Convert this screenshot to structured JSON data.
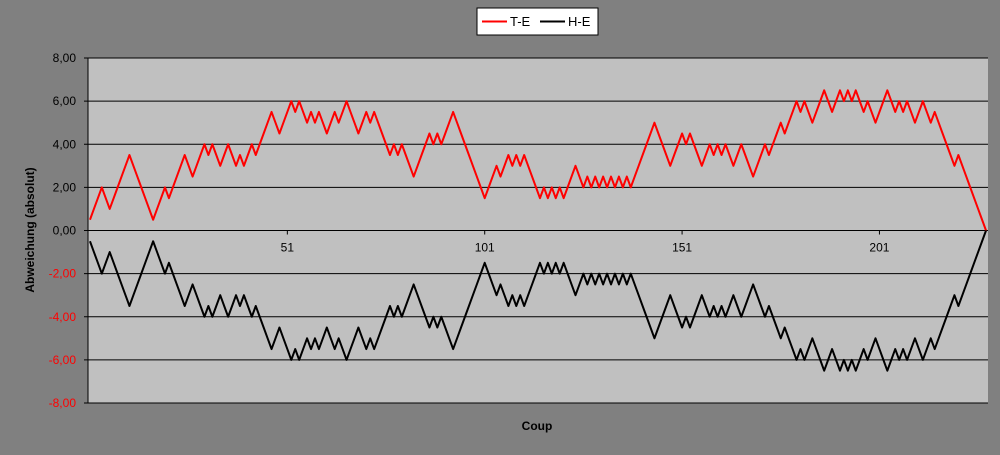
{
  "chart_data": {
    "type": "line",
    "title": "",
    "xlabel": "Coup",
    "ylabel": "Abweichung (absolut)",
    "x_start": 1,
    "x_ticks": [
      "51",
      "101",
      "151",
      "201"
    ],
    "y_ticks": [
      "8,00",
      "6,00",
      "4,00",
      "2,00",
      "0,00",
      "-2,00",
      "-4,00",
      "-6,00",
      "-8,00"
    ],
    "ylim": [
      -8,
      8
    ],
    "grid": true,
    "legend_position": "top-center",
    "colors": {
      "plot_background": "#c0c0c0",
      "page_background": "#808080",
      "grid": "#000000",
      "negative_tick_label": "#ff0000"
    },
    "series": [
      {
        "name": "T-E",
        "color": "#ff0000",
        "values": [
          0.5,
          1,
          1.5,
          2,
          1.5,
          1,
          1.5,
          2,
          2.5,
          3,
          3.5,
          3,
          2.5,
          2,
          1.5,
          1,
          0.5,
          1,
          1.5,
          2,
          1.5,
          2,
          2.5,
          3,
          3.5,
          3,
          2.5,
          3,
          3.5,
          4,
          3.5,
          4,
          3.5,
          3,
          3.5,
          4,
          3.5,
          3,
          3.5,
          3,
          3.5,
          4,
          3.5,
          4,
          4.5,
          5,
          5.5,
          5,
          4.5,
          5,
          5.5,
          6,
          5.5,
          6,
          5.5,
          5,
          5.5,
          5,
          5.5,
          5,
          4.5,
          5,
          5.5,
          5,
          5.5,
          6,
          5.5,
          5,
          4.5,
          5,
          5.5,
          5,
          5.5,
          5,
          4.5,
          4,
          3.5,
          4,
          3.5,
          4,
          3.5,
          3,
          2.5,
          3,
          3.5,
          4,
          4.5,
          4,
          4.5,
          4,
          4.5,
          5,
          5.5,
          5,
          4.5,
          4,
          3.5,
          3,
          2.5,
          2,
          1.5,
          2,
          2.5,
          3,
          2.5,
          3,
          3.5,
          3,
          3.5,
          3,
          3.5,
          3,
          2.5,
          2,
          1.5,
          2,
          1.5,
          2,
          1.5,
          2,
          1.5,
          2,
          2.5,
          3,
          2.5,
          2,
          2.5,
          2,
          2.5,
          2,
          2.5,
          2,
          2.5,
          2,
          2.5,
          2,
          2.5,
          2,
          2.5,
          3,
          3.5,
          4,
          4.5,
          5,
          4.5,
          4,
          3.5,
          3,
          3.5,
          4,
          4.5,
          4,
          4.5,
          4,
          3.5,
          3,
          3.5,
          4,
          3.5,
          4,
          3.5,
          4,
          3.5,
          3,
          3.5,
          4,
          3.5,
          3,
          2.5,
          3,
          3.5,
          4,
          3.5,
          4,
          4.5,
          5,
          4.5,
          5,
          5.5,
          6,
          5.5,
          6,
          5.5,
          5,
          5.5,
          6,
          6.5,
          6,
          5.5,
          6,
          6.5,
          6,
          6.5,
          6,
          6.5,
          6,
          5.5,
          6,
          5.5,
          5,
          5.5,
          6,
          6.5,
          6,
          5.5,
          6,
          5.5,
          6,
          5.5,
          5,
          5.5,
          6,
          5.5,
          5,
          5.5,
          5,
          4.5,
          4,
          3.5,
          3,
          3.5,
          3,
          2.5,
          2,
          1.5,
          1,
          0.5,
          0
        ]
      },
      {
        "name": "H-E",
        "color": "#000000",
        "values": [
          -0.5,
          -1,
          -1.5,
          -2,
          -1.5,
          -1,
          -1.5,
          -2,
          -2.5,
          -3,
          -3.5,
          -3,
          -2.5,
          -2,
          -1.5,
          -1,
          -0.5,
          -1,
          -1.5,
          -2,
          -1.5,
          -2,
          -2.5,
          -3,
          -3.5,
          -3,
          -2.5,
          -3,
          -3.5,
          -4,
          -3.5,
          -4,
          -3.5,
          -3,
          -3.5,
          -4,
          -3.5,
          -3,
          -3.5,
          -3,
          -3.5,
          -4,
          -3.5,
          -4,
          -4.5,
          -5,
          -5.5,
          -5,
          -4.5,
          -5,
          -5.5,
          -6,
          -5.5,
          -6,
          -5.5,
          -5,
          -5.5,
          -5,
          -5.5,
          -5,
          -4.5,
          -5,
          -5.5,
          -5,
          -5.5,
          -6,
          -5.5,
          -5,
          -4.5,
          -5,
          -5.5,
          -5,
          -5.5,
          -5,
          -4.5,
          -4,
          -3.5,
          -4,
          -3.5,
          -4,
          -3.5,
          -3,
          -2.5,
          -3,
          -3.5,
          -4,
          -4.5,
          -4,
          -4.5,
          -4,
          -4.5,
          -5,
          -5.5,
          -5,
          -4.5,
          -4,
          -3.5,
          -3,
          -2.5,
          -2,
          -1.5,
          -2,
          -2.5,
          -3,
          -2.5,
          -3,
          -3.5,
          -3,
          -3.5,
          -3,
          -3.5,
          -3,
          -2.5,
          -2,
          -1.5,
          -2,
          -1.5,
          -2,
          -1.5,
          -2,
          -1.5,
          -2,
          -2.5,
          -3,
          -2.5,
          -2,
          -2.5,
          -2,
          -2.5,
          -2,
          -2.5,
          -2,
          -2.5,
          -2,
          -2.5,
          -2,
          -2.5,
          -2,
          -2.5,
          -3,
          -3.5,
          -4,
          -4.5,
          -5,
          -4.5,
          -4,
          -3.5,
          -3,
          -3.5,
          -4,
          -4.5,
          -4,
          -4.5,
          -4,
          -3.5,
          -3,
          -3.5,
          -4,
          -3.5,
          -4,
          -3.5,
          -4,
          -3.5,
          -3,
          -3.5,
          -4,
          -3.5,
          -3,
          -2.5,
          -3,
          -3.5,
          -4,
          -3.5,
          -4,
          -4.5,
          -5,
          -4.5,
          -5,
          -5.5,
          -6,
          -5.5,
          -6,
          -5.5,
          -5,
          -5.5,
          -6,
          -6.5,
          -6,
          -5.5,
          -6,
          -6.5,
          -6,
          -6.5,
          -6,
          -6.5,
          -6,
          -5.5,
          -6,
          -5.5,
          -5,
          -5.5,
          -6,
          -6.5,
          -6,
          -5.5,
          -6,
          -5.5,
          -6,
          -5.5,
          -5,
          -5.5,
          -6,
          -5.5,
          -5,
          -5.5,
          -5,
          -4.5,
          -4,
          -3.5,
          -3,
          -3.5,
          -3,
          -2.5,
          -2,
          -1.5,
          -1,
          -0.5,
          0
        ]
      }
    ]
  }
}
